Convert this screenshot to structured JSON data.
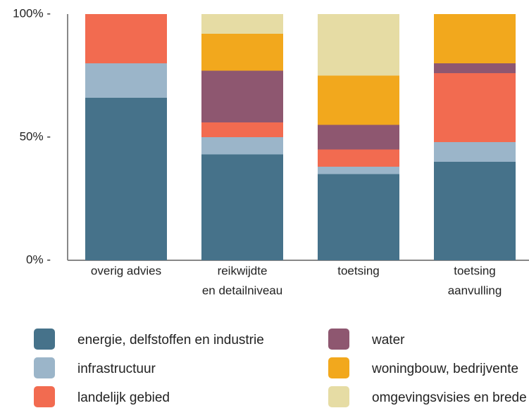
{
  "chart_data": {
    "type": "stacked-bar-100",
    "categories": [
      [
        "overig advies"
      ],
      [
        "reikwijdte",
        "en detailniveau"
      ],
      [
        "toetsing"
      ],
      [
        "toetsing",
        "aanvulling"
      ]
    ],
    "series": [
      {
        "name": "energie, delfstoffen en industrie",
        "color": "#46728a",
        "values": [
          66,
          43,
          35,
          40
        ]
      },
      {
        "name": "infrastructuur",
        "color": "#9bb5c9",
        "values": [
          14,
          7,
          3,
          8
        ]
      },
      {
        "name": "landelijk gebied",
        "color": "#f26b50",
        "values": [
          20,
          6,
          7,
          28
        ]
      },
      {
        "name": "water",
        "color": "#8e5770",
        "values": [
          0,
          21,
          10,
          4
        ]
      },
      {
        "name": "woningbouw, bedrijvente",
        "color": "#f2a81d",
        "values": [
          0,
          15,
          20,
          20
        ]
      },
      {
        "name": "omgevingsvisies en brede",
        "color": "#e6dca4",
        "values": [
          0,
          8,
          25,
          0
        ]
      }
    ],
    "ylim": [
      0,
      100
    ],
    "yticks": [
      {
        "value": 0,
        "label": "0% -"
      },
      {
        "value": 50,
        "label": "50% -"
      },
      {
        "value": 100,
        "label": "100% -"
      }
    ]
  }
}
